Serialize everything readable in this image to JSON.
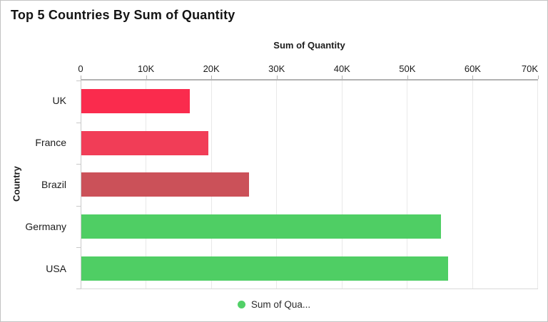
{
  "chart_data": {
    "type": "bar",
    "orientation": "horizontal",
    "title": "Top 5 Countries By Sum of Quantity",
    "xlabel": "Sum of Quantity",
    "ylabel": "Country",
    "categories": [
      "UK",
      "France",
      "Brazil",
      "Germany",
      "USA"
    ],
    "series": [
      {
        "name": "Sum of Quantity",
        "values": [
          16600,
          19500,
          25650,
          55150,
          56250
        ]
      }
    ],
    "xlim": [
      0,
      70000
    ],
    "x_ticks": [
      {
        "value": 0,
        "label": "0"
      },
      {
        "value": 10000,
        "label": "10K"
      },
      {
        "value": 20000,
        "label": "20K"
      },
      {
        "value": 30000,
        "label": "30K"
      },
      {
        "value": 40000,
        "label": "40K"
      },
      {
        "value": 50000,
        "label": "50K"
      },
      {
        "value": 60000,
        "label": "60K"
      },
      {
        "value": 70000,
        "label": "70K"
      }
    ],
    "bar_colors": [
      "#fa2b4d",
      "#f13d57",
      "#cb5159",
      "#4fce64",
      "#4fce64"
    ],
    "grid": "vertical-only",
    "legend": {
      "position": "bottom",
      "items": [
        {
          "label": "Sum of Qua...",
          "color": "#52d068"
        }
      ]
    }
  }
}
